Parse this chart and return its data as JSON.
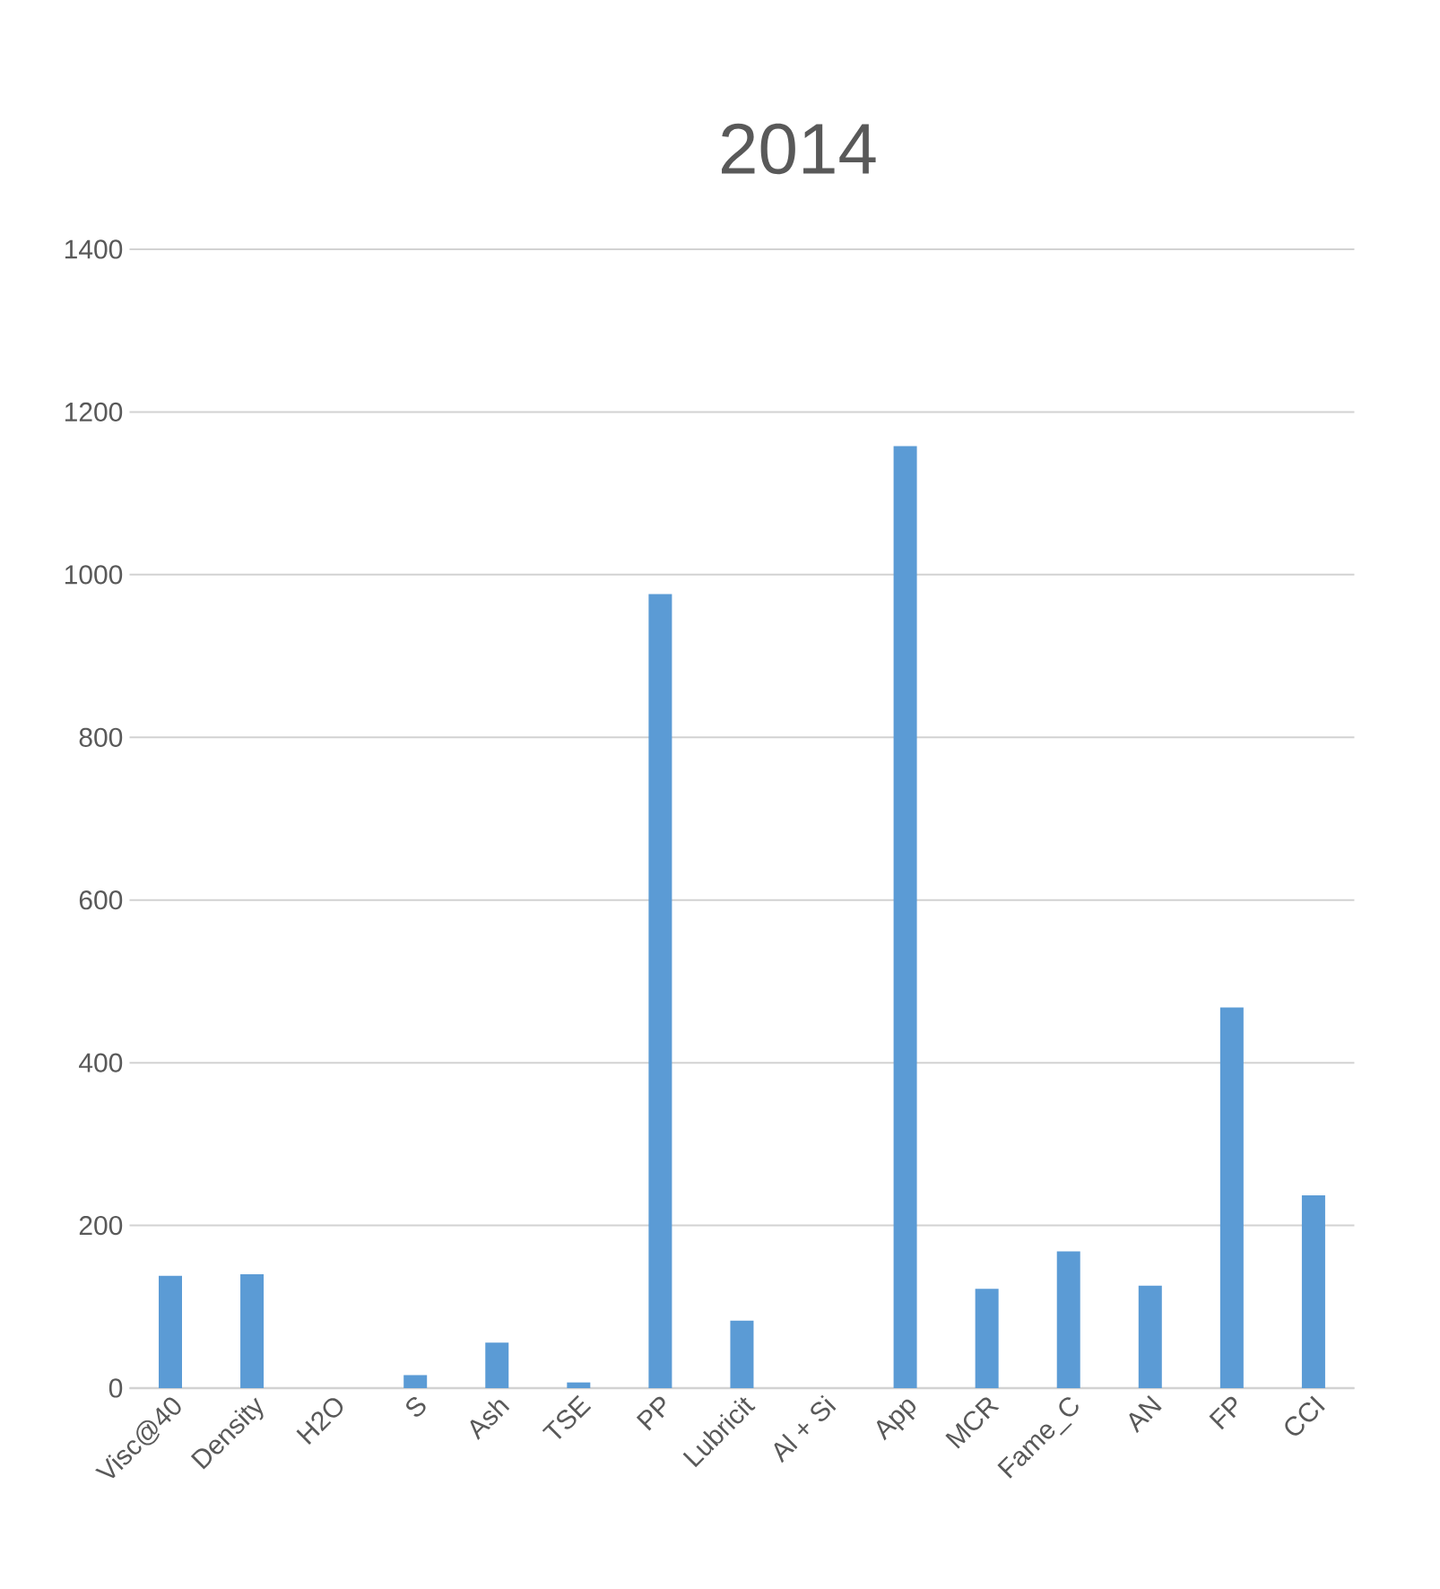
{
  "chart_data": {
    "type": "bar",
    "title": "2014",
    "categories": [
      "Visc@40",
      "Density",
      "H2O",
      "S",
      "Ash",
      "TSE",
      "PP",
      "Lubricit",
      "Al + Si",
      "App",
      "MCR",
      "Fame_C",
      "AN",
      "FP",
      "CCI"
    ],
    "values": [
      138,
      140,
      0,
      16,
      56,
      7,
      976,
      83,
      0,
      1158,
      122,
      168,
      126,
      468,
      237
    ],
    "color": "#5b9bd5",
    "ylim": [
      0,
      1400
    ],
    "yticks": [
      0,
      200,
      400,
      600,
      800,
      1000,
      1200,
      1400
    ],
    "grid": "y"
  }
}
